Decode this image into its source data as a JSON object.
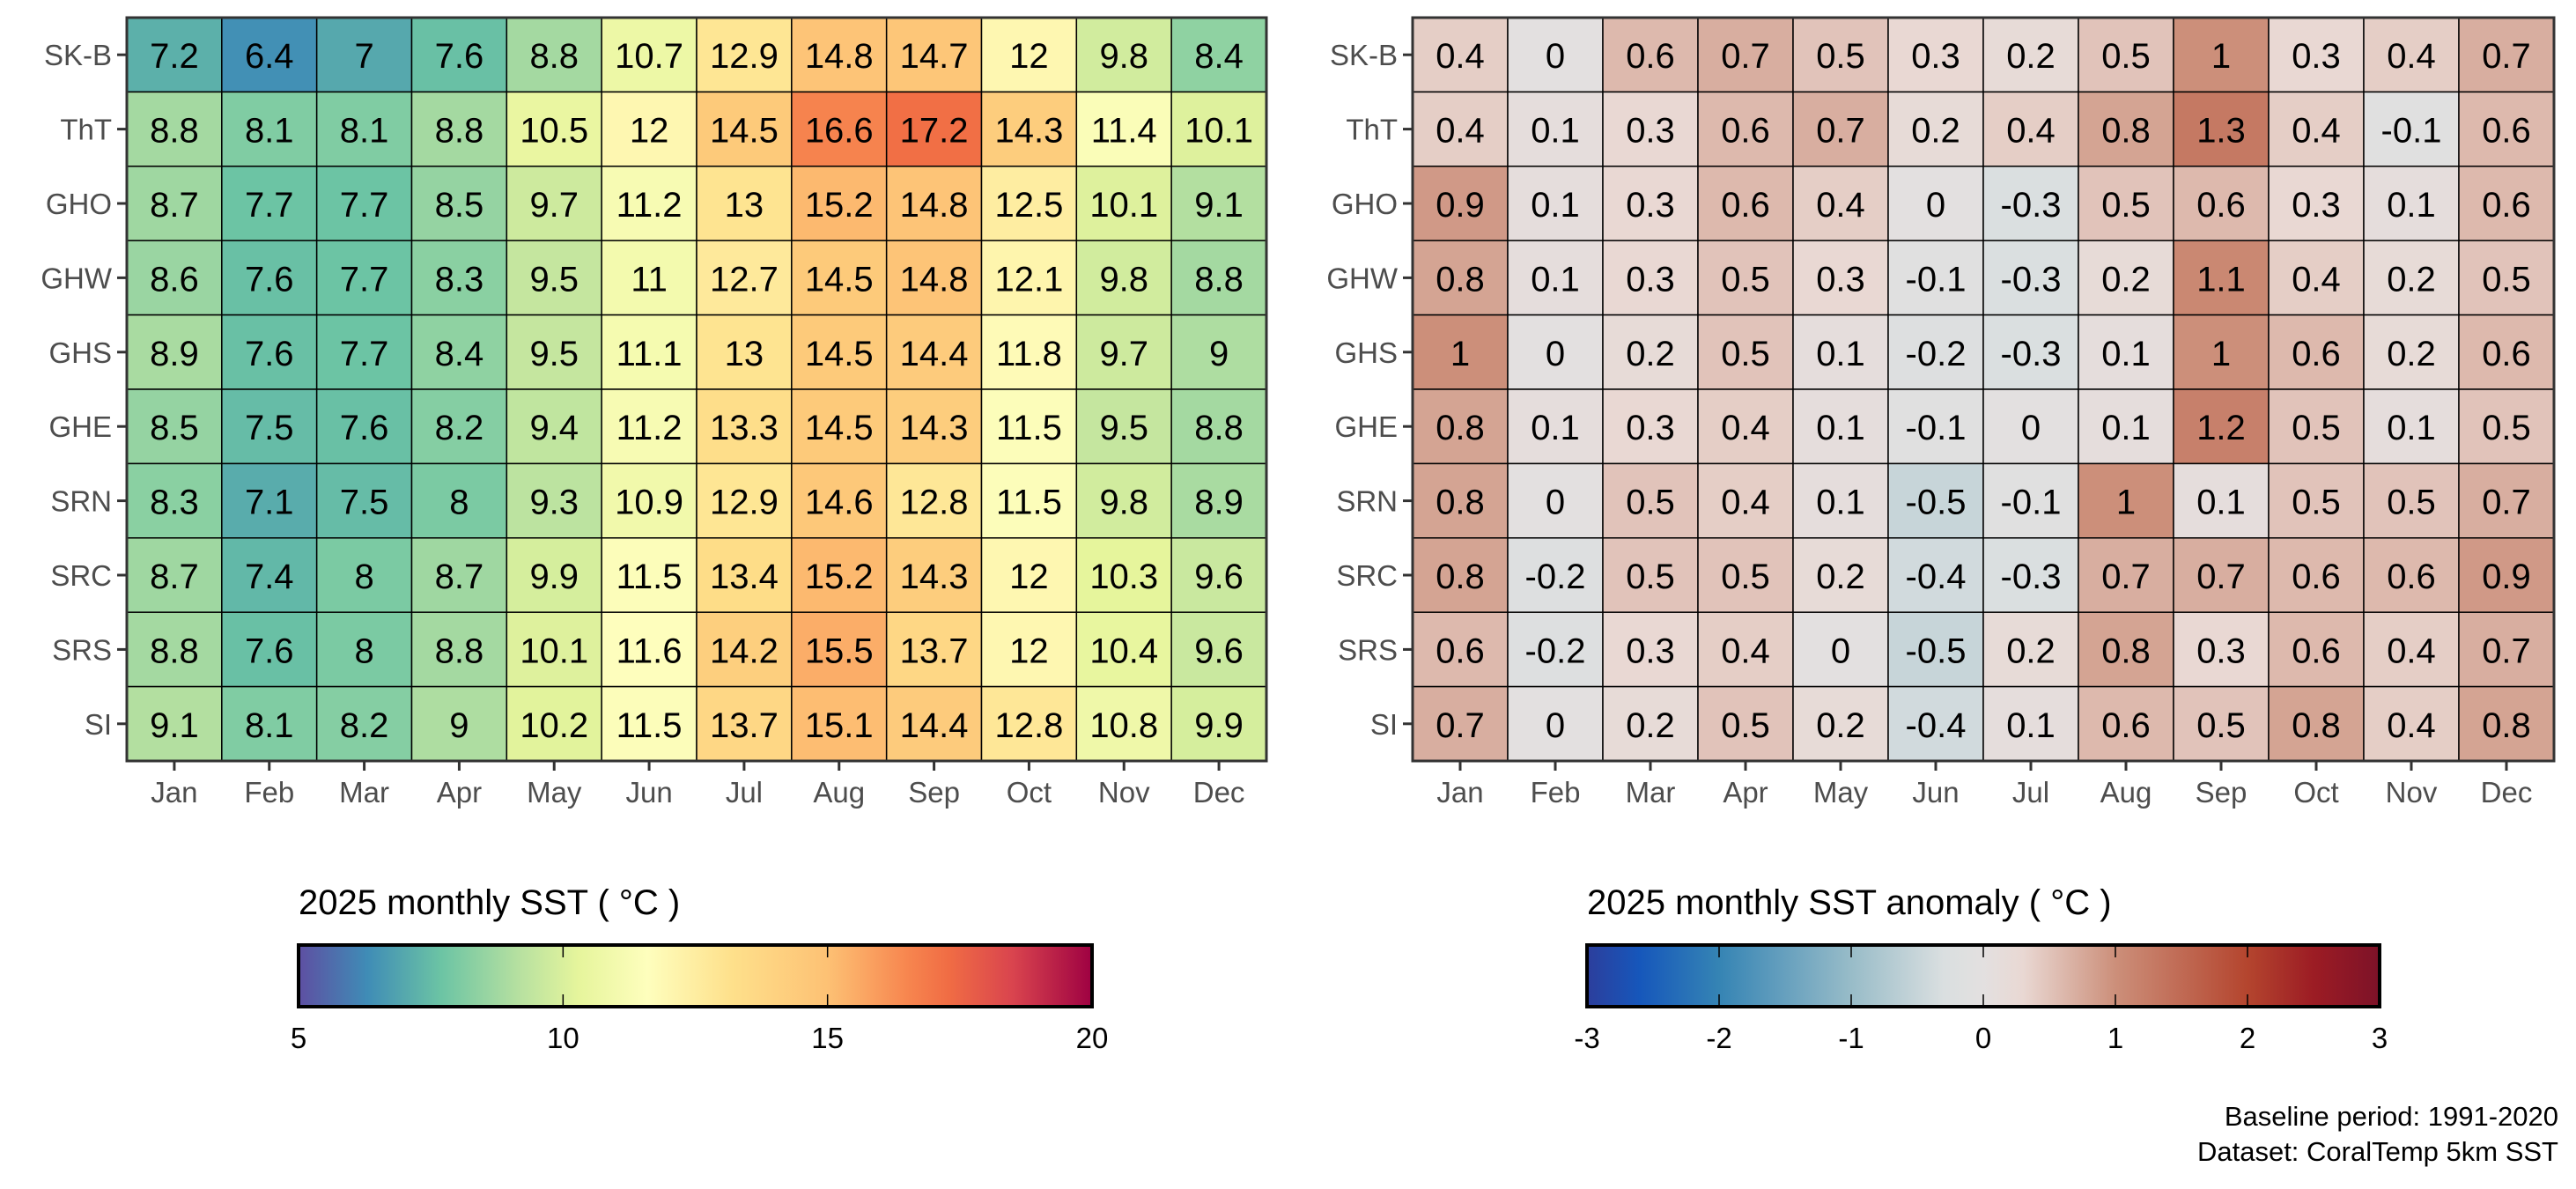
{
  "chart_data": [
    {
      "type": "heatmap",
      "title": "2025 monthly SST ( °C )",
      "x_categories": [
        "Jan",
        "Feb",
        "Mar",
        "Apr",
        "May",
        "Jun",
        "Jul",
        "Aug",
        "Sep",
        "Oct",
        "Nov",
        "Dec"
      ],
      "y_categories": [
        "SK-B",
        "ThT",
        "GHO",
        "GHW",
        "GHS",
        "GHE",
        "SRN",
        "SRC",
        "SRS",
        "SI"
      ],
      "values": [
        [
          7.2,
          6.4,
          7,
          7.6,
          8.8,
          10.7,
          12.9,
          14.8,
          14.7,
          12,
          9.8,
          8.4
        ],
        [
          8.8,
          8.1,
          8.1,
          8.8,
          10.5,
          12,
          14.5,
          16.6,
          17.2,
          14.3,
          11.4,
          10.1
        ],
        [
          8.7,
          7.7,
          7.7,
          8.5,
          9.7,
          11.2,
          13,
          15.2,
          14.8,
          12.5,
          10.1,
          9.1
        ],
        [
          8.6,
          7.6,
          7.7,
          8.3,
          9.5,
          11,
          12.7,
          14.5,
          14.8,
          12.1,
          9.8,
          8.8
        ],
        [
          8.9,
          7.6,
          7.7,
          8.4,
          9.5,
          11.1,
          13,
          14.5,
          14.4,
          11.8,
          9.7,
          9
        ],
        [
          8.5,
          7.5,
          7.6,
          8.2,
          9.4,
          11.2,
          13.3,
          14.5,
          14.3,
          11.5,
          9.5,
          8.8
        ],
        [
          8.3,
          7.1,
          7.5,
          8,
          9.3,
          10.9,
          12.9,
          14.6,
          12.8,
          11.5,
          9.8,
          8.9
        ],
        [
          8.7,
          7.4,
          8,
          8.7,
          9.9,
          11.5,
          13.4,
          15.2,
          14.3,
          12,
          10.3,
          9.6
        ],
        [
          8.8,
          7.6,
          8,
          8.8,
          10.1,
          11.6,
          14.2,
          15.5,
          13.7,
          12,
          10.4,
          9.6
        ],
        [
          9.1,
          8.1,
          8.2,
          9,
          10.2,
          11.5,
          13.7,
          15.1,
          14.4,
          12.8,
          10.8,
          9.9
        ]
      ],
      "colorbar": {
        "range": [
          5,
          20
        ],
        "ticks": [
          "5",
          "10",
          "15",
          "20"
        ],
        "stops": [
          [
            5,
            "#5e4fa2"
          ],
          [
            6.3,
            "#3f8cb6"
          ],
          [
            7.7,
            "#6cc4a4"
          ],
          [
            9.2,
            "#b8e1a0"
          ],
          [
            10.3,
            "#e6f59c"
          ],
          [
            11.6,
            "#fefebd"
          ],
          [
            13.2,
            "#fee08b"
          ],
          [
            15,
            "#fdc174"
          ],
          [
            16.5,
            "#f7864f"
          ],
          [
            17.3,
            "#f06c44"
          ],
          [
            18.5,
            "#d9444e"
          ],
          [
            20,
            "#9e0142"
          ]
        ]
      }
    },
    {
      "type": "heatmap",
      "title": "2025 monthly SST anomaly ( °C )",
      "x_categories": [
        "Jan",
        "Feb",
        "Mar",
        "Apr",
        "May",
        "Jun",
        "Jul",
        "Aug",
        "Sep",
        "Oct",
        "Nov",
        "Dec"
      ],
      "y_categories": [
        "SK-B",
        "ThT",
        "GHO",
        "GHW",
        "GHS",
        "GHE",
        "SRN",
        "SRC",
        "SRS",
        "SI"
      ],
      "values": [
        [
          0.4,
          0,
          0.6,
          0.7,
          0.5,
          0.3,
          0.2,
          0.5,
          1,
          0.3,
          0.4,
          0.7
        ],
        [
          0.4,
          0.1,
          0.3,
          0.6,
          0.7,
          0.2,
          0.4,
          0.8,
          1.3,
          0.4,
          -0.1,
          0.6
        ],
        [
          0.9,
          0.1,
          0.3,
          0.6,
          0.4,
          0,
          -0.3,
          0.5,
          0.6,
          0.3,
          0.1,
          0.6
        ],
        [
          0.8,
          0.1,
          0.3,
          0.5,
          0.3,
          -0.1,
          -0.3,
          0.2,
          1.1,
          0.4,
          0.2,
          0.5
        ],
        [
          1,
          0,
          0.2,
          0.5,
          0.1,
          -0.2,
          -0.3,
          0.1,
          1,
          0.6,
          0.2,
          0.6
        ],
        [
          0.8,
          0.1,
          0.3,
          0.4,
          0.1,
          -0.1,
          0,
          0.1,
          1.2,
          0.5,
          0.1,
          0.5
        ],
        [
          0.8,
          0,
          0.5,
          0.4,
          0.1,
          -0.5,
          -0.1,
          1,
          0.1,
          0.5,
          0.5,
          0.7
        ],
        [
          0.8,
          -0.2,
          0.5,
          0.5,
          0.2,
          -0.4,
          -0.3,
          0.7,
          0.7,
          0.6,
          0.6,
          0.9
        ],
        [
          0.6,
          -0.2,
          0.3,
          0.4,
          0,
          -0.5,
          0.2,
          0.8,
          0.3,
          0.6,
          0.4,
          0.7
        ],
        [
          0.7,
          0,
          0.2,
          0.5,
          0.2,
          -0.4,
          0.1,
          0.6,
          0.5,
          0.8,
          0.4,
          0.8
        ]
      ],
      "colorbar": {
        "range": [
          -3,
          3
        ],
        "ticks": [
          "-3",
          "-2",
          "-1",
          "0",
          "1",
          "2",
          "3"
        ],
        "stops": [
          [
            -3,
            "#2c3e9c"
          ],
          [
            -2.6,
            "#1657bb"
          ],
          [
            -2,
            "#3584b4"
          ],
          [
            -1,
            "#98bcc8"
          ],
          [
            -0.3,
            "#dadfe0"
          ],
          [
            0,
            "#e3e0e0"
          ],
          [
            0.3,
            "#e9d8d3"
          ],
          [
            1,
            "#cc8f7a"
          ],
          [
            2,
            "#b4452e"
          ],
          [
            2.5,
            "#9c1c24"
          ],
          [
            3,
            "#7d1228"
          ]
        ]
      }
    }
  ],
  "caption": {
    "line1": "Baseline period: 1991-2020",
    "line2": "Dataset: CoralTemp 5km SST"
  }
}
